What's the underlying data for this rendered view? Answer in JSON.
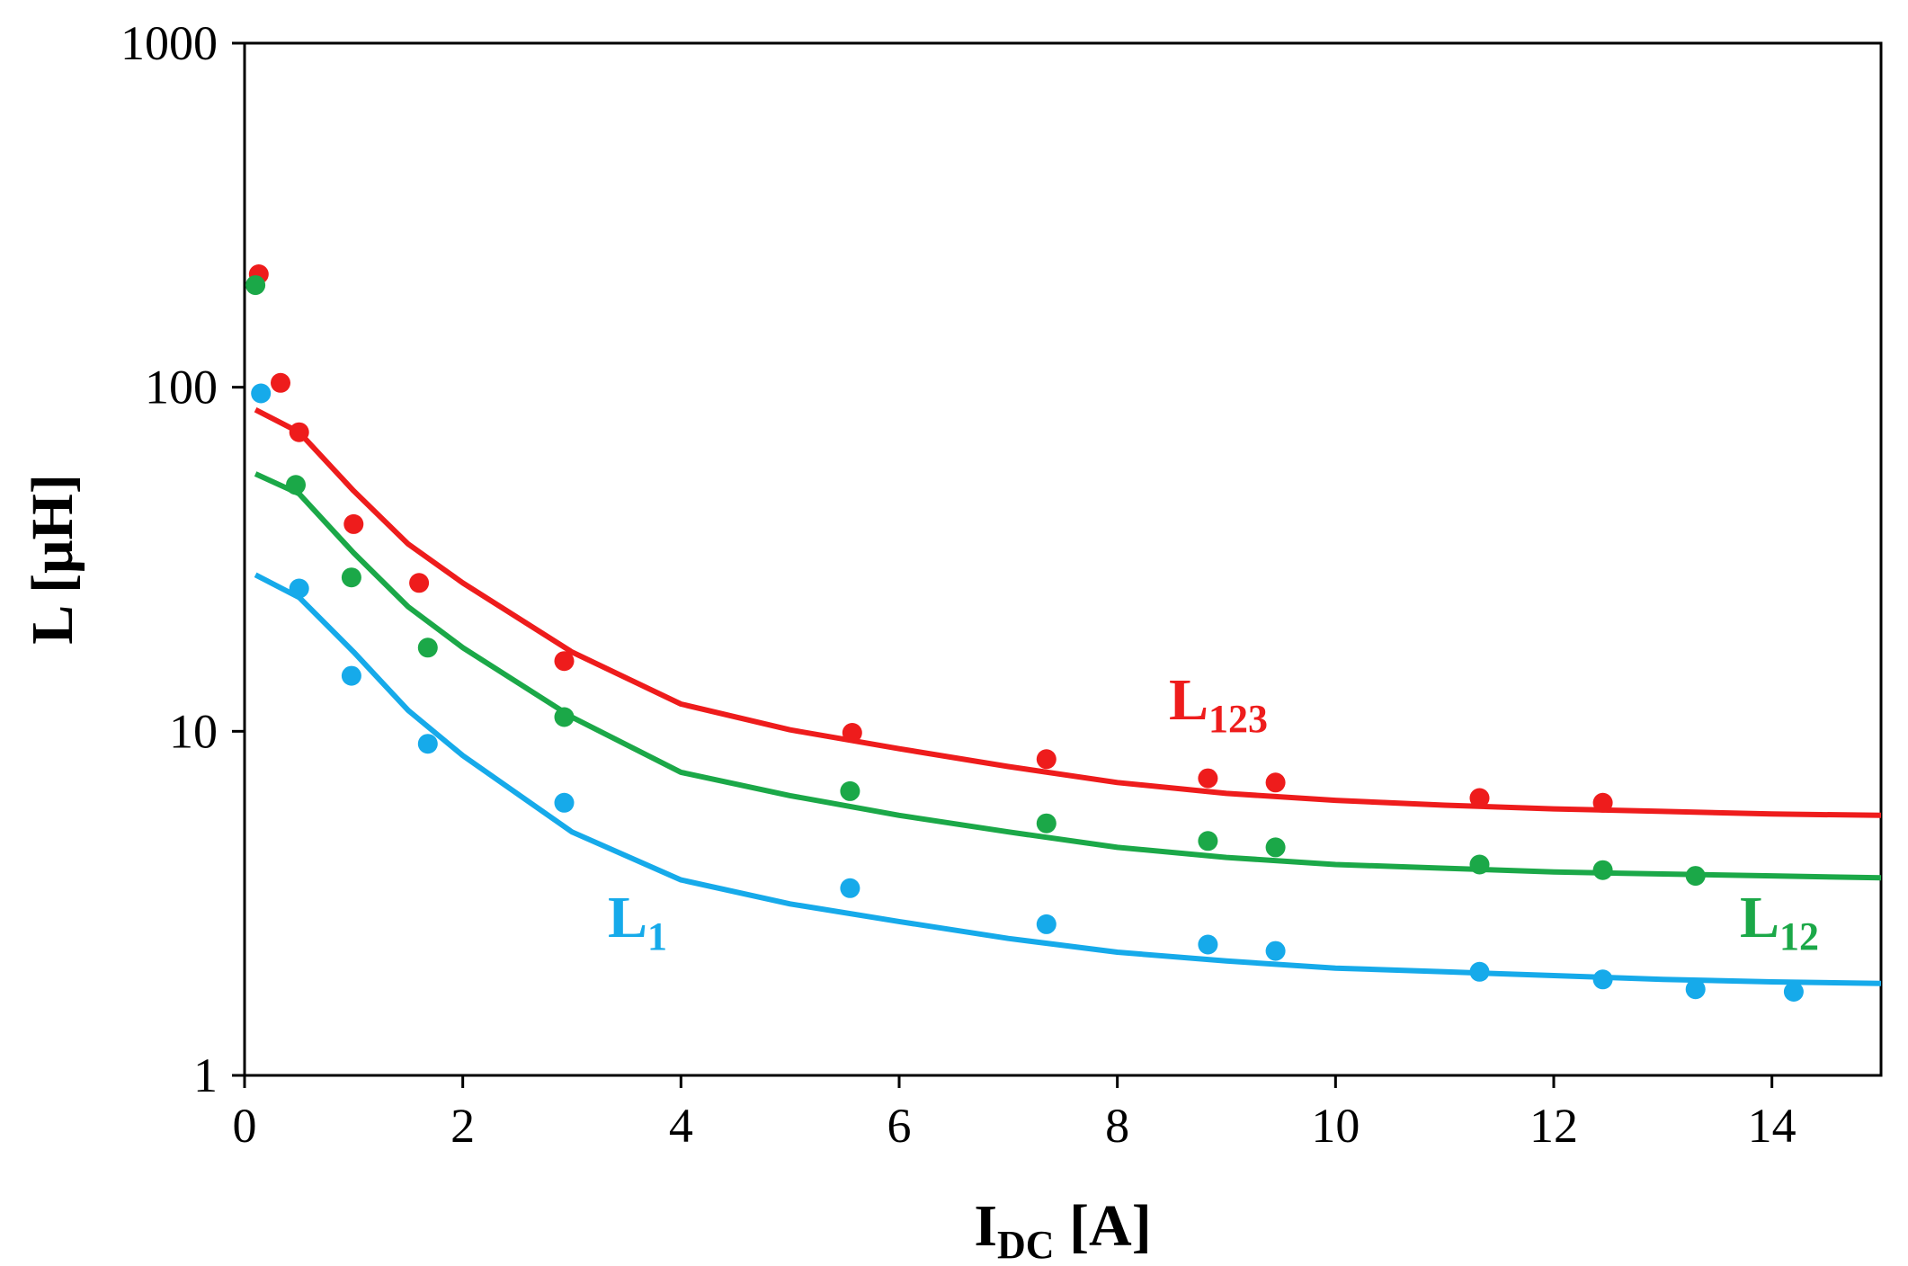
{
  "chart_data": {
    "type": "scatter",
    "xlabel": "I",
    "xlabel_sub": "DC",
    "xlabel_unit": " [A]",
    "ylabel": "L [μH]",
    "xlim": [
      0,
      15
    ],
    "ylim": [
      1,
      1000
    ],
    "yscale": "log",
    "grid": false,
    "xticks": [
      0,
      2,
      4,
      6,
      8,
      10,
      12,
      14
    ],
    "yticks": [
      1,
      10,
      100,
      1000
    ],
    "xtick_labels": [
      "0",
      "2",
      "4",
      "6",
      "8",
      "10",
      "12",
      "14"
    ],
    "ytick_labels": [
      "1",
      "10",
      "100",
      "1000"
    ],
    "series": [
      {
        "name": "L123",
        "label_main": "L",
        "label_sub": "123",
        "color": "#ee1c1c",
        "points": [
          [
            0.13,
            213
          ],
          [
            0.33,
            103
          ],
          [
            0.5,
            74
          ],
          [
            1.0,
            40
          ],
          [
            1.6,
            27
          ],
          [
            2.93,
            16
          ],
          [
            5.57,
            9.9
          ],
          [
            7.35,
            8.3
          ],
          [
            8.83,
            7.3
          ],
          [
            9.45,
            7.1
          ],
          [
            11.32,
            6.4
          ],
          [
            12.45,
            6.2
          ]
        ],
        "fit": [
          [
            0.1,
            86
          ],
          [
            0.5,
            74
          ],
          [
            1.0,
            50
          ],
          [
            1.5,
            35
          ],
          [
            2.0,
            27
          ],
          [
            3.0,
            17
          ],
          [
            4.0,
            12
          ],
          [
            5.0,
            10.1
          ],
          [
            6.0,
            8.9
          ],
          [
            7.0,
            7.9
          ],
          [
            8.0,
            7.1
          ],
          [
            9.0,
            6.6
          ],
          [
            10.0,
            6.3
          ],
          [
            11.0,
            6.1
          ],
          [
            12.0,
            5.95
          ],
          [
            13.0,
            5.85
          ],
          [
            14.0,
            5.75
          ],
          [
            15.0,
            5.7
          ]
        ]
      },
      {
        "name": "L12",
        "label_main": "L",
        "label_sub": "12",
        "color": "#1ba848",
        "points": [
          [
            0.1,
            198
          ],
          [
            0.47,
            52
          ],
          [
            0.98,
            28
          ],
          [
            1.68,
            17.5
          ],
          [
            2.93,
            11.0
          ],
          [
            5.55,
            6.7
          ],
          [
            7.35,
            5.4
          ],
          [
            8.83,
            4.8
          ],
          [
            9.45,
            4.6
          ],
          [
            11.32,
            4.1
          ],
          [
            12.45,
            3.95
          ],
          [
            13.3,
            3.8
          ]
        ],
        "fit": [
          [
            0.1,
            56
          ],
          [
            0.5,
            49
          ],
          [
            1.0,
            33
          ],
          [
            1.5,
            23
          ],
          [
            2.0,
            17.5
          ],
          [
            3.0,
            11
          ],
          [
            4.0,
            7.6
          ],
          [
            5.0,
            6.5
          ],
          [
            6.0,
            5.7
          ],
          [
            7.0,
            5.1
          ],
          [
            8.0,
            4.6
          ],
          [
            9.0,
            4.3
          ],
          [
            10.0,
            4.1
          ],
          [
            11.0,
            4.0
          ],
          [
            12.0,
            3.9
          ],
          [
            13.0,
            3.85
          ],
          [
            14.0,
            3.8
          ],
          [
            15.0,
            3.75
          ]
        ]
      },
      {
        "name": "L1",
        "label_main": "L",
        "label_sub": "1",
        "color": "#16aaea",
        "points": [
          [
            0.15,
            96
          ],
          [
            0.5,
            26
          ],
          [
            0.98,
            14.5
          ],
          [
            1.68,
            9.2
          ],
          [
            2.93,
            6.2
          ],
          [
            5.55,
            3.5
          ],
          [
            7.35,
            2.75
          ],
          [
            8.83,
            2.4
          ],
          [
            9.45,
            2.3
          ],
          [
            11.32,
            2.0
          ],
          [
            12.45,
            1.9
          ],
          [
            13.3,
            1.78
          ],
          [
            14.2,
            1.75
          ]
        ],
        "fit": [
          [
            0.1,
            28.5
          ],
          [
            0.5,
            24.5
          ],
          [
            1.0,
            17
          ],
          [
            1.5,
            11.5
          ],
          [
            2.0,
            8.5
          ],
          [
            3.0,
            5.1
          ],
          [
            4.0,
            3.7
          ],
          [
            5.0,
            3.15
          ],
          [
            6.0,
            2.8
          ],
          [
            7.0,
            2.5
          ],
          [
            8.0,
            2.28
          ],
          [
            9.0,
            2.15
          ],
          [
            10.0,
            2.05
          ],
          [
            11.0,
            2.0
          ],
          [
            12.0,
            1.95
          ],
          [
            13.0,
            1.9
          ],
          [
            14.0,
            1.87
          ],
          [
            15.0,
            1.85
          ]
        ]
      }
    ]
  }
}
